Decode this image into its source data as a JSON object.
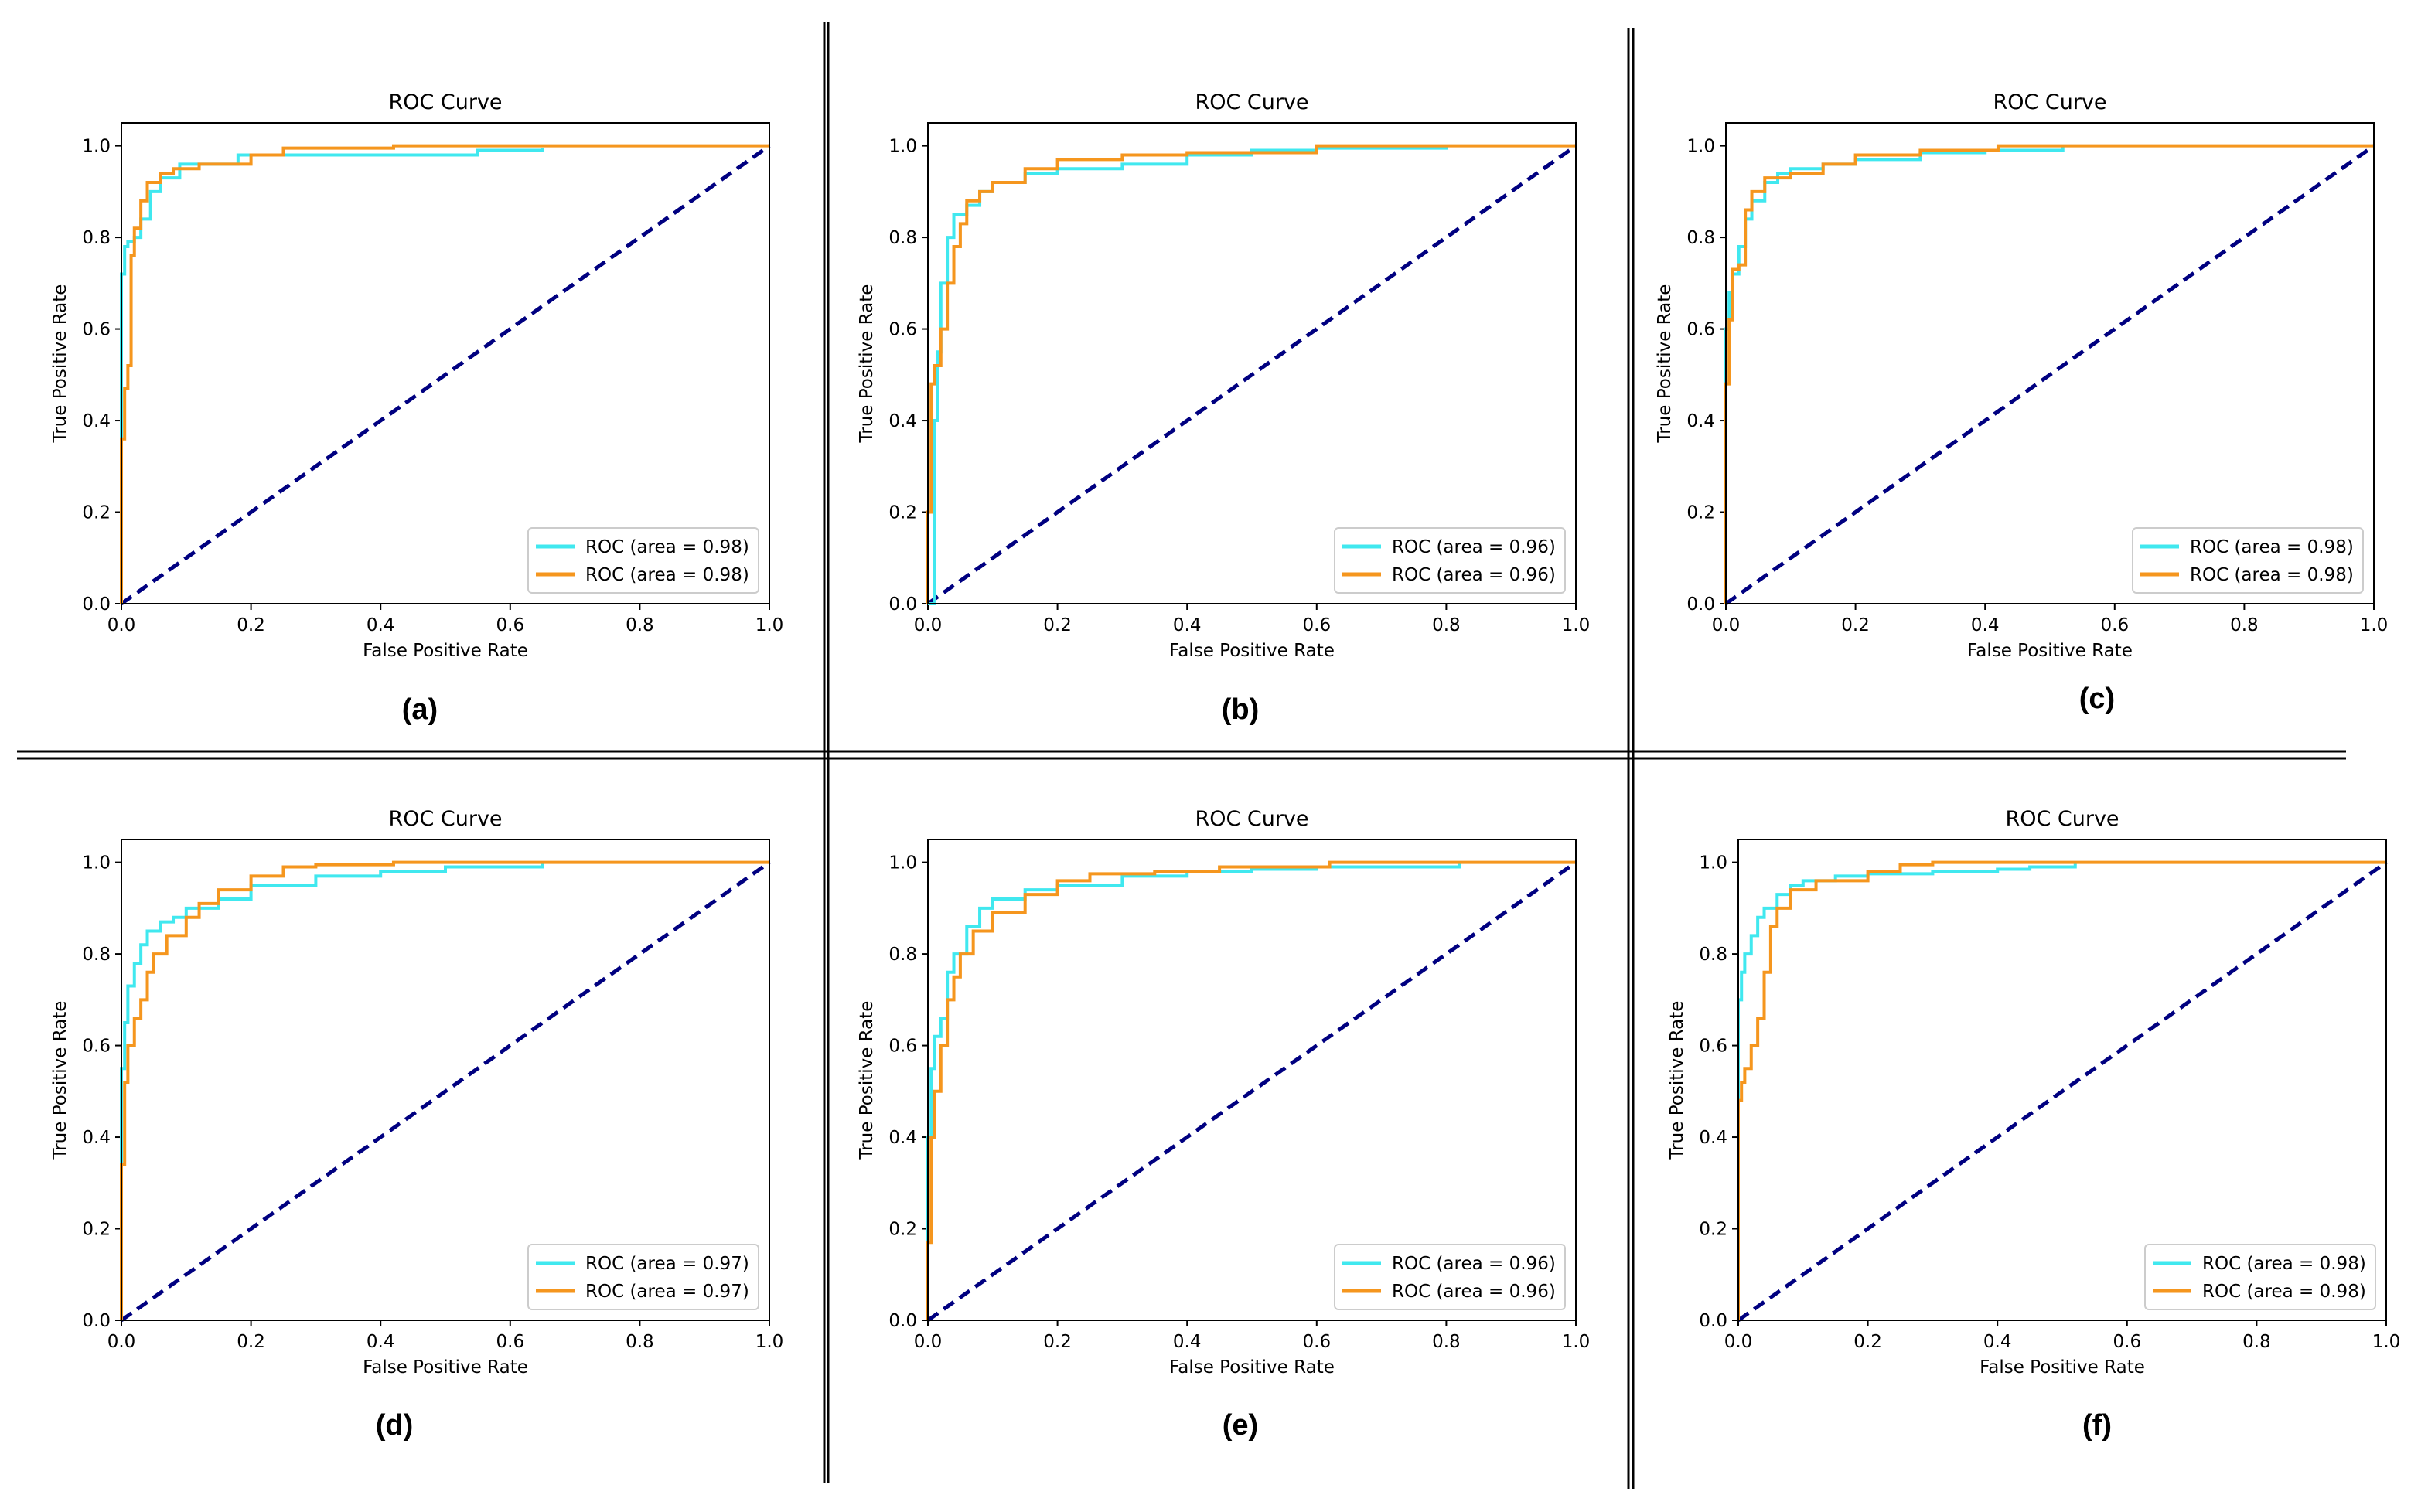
{
  "figure": {
    "separator_color": "#000000"
  },
  "style": {
    "series_colors": [
      "#40E8EF",
      "#F5961E"
    ],
    "diagonal_color": "#000080",
    "axis_color": "#000000"
  },
  "chart_data": [
    {
      "type": "line",
      "panel": "(a)",
      "title": "ROC Curve",
      "xlabel": "False Positive Rate",
      "ylabel": "True Positive Rate",
      "xlim": [
        0,
        1
      ],
      "ylim": [
        0,
        1.05
      ],
      "xticks": [
        "0.0",
        "0.2",
        "0.4",
        "0.6",
        "0.8",
        "1.0"
      ],
      "yticks": [
        "0.0",
        "0.2",
        "0.4",
        "0.6",
        "0.8",
        "1.0"
      ],
      "legend_position": "lower-right",
      "diagonal": {
        "x": [
          0,
          1
        ],
        "y": [
          0,
          1
        ],
        "style": "dashed"
      },
      "series": [
        {
          "name": "ROC (area = 0.98)",
          "x": [
            0,
            0,
            0.005,
            0.01,
            0.02,
            0.03,
            0.045,
            0.06,
            0.09,
            0.13,
            0.18,
            0.3,
            0.5,
            0.55,
            0.65
          ],
          "y": [
            0,
            0.72,
            0.78,
            0.79,
            0.8,
            0.84,
            0.9,
            0.93,
            0.96,
            0.96,
            0.98,
            0.98,
            0.98,
            0.99,
            0.995
          ]
        },
        {
          "name": "ROC (area = 0.98)",
          "x": [
            0,
            0,
            0.005,
            0.01,
            0.015,
            0.02,
            0.03,
            0.04,
            0.06,
            0.08,
            0.12,
            0.2,
            0.25,
            0.42,
            1.0
          ],
          "y": [
            0,
            0.36,
            0.47,
            0.52,
            0.76,
            0.82,
            0.88,
            0.92,
            0.94,
            0.95,
            0.96,
            0.98,
            0.995,
            1.0,
            1.0
          ]
        }
      ]
    },
    {
      "type": "line",
      "panel": "(b)",
      "title": "ROC Curve",
      "xlabel": "False Positive Rate",
      "ylabel": "True Positive Rate",
      "xlim": [
        0,
        1
      ],
      "ylim": [
        0,
        1.05
      ],
      "xticks": [
        "0.0",
        "0.2",
        "0.4",
        "0.6",
        "0.8",
        "1.0"
      ],
      "yticks": [
        "0.0",
        "0.2",
        "0.4",
        "0.6",
        "0.8",
        "1.0"
      ],
      "legend_position": "lower-right",
      "diagonal": {
        "x": [
          0,
          1
        ],
        "y": [
          0,
          1
        ],
        "style": "dashed"
      },
      "series": [
        {
          "name": "ROC (area = 0.96)",
          "x": [
            0,
            0.01,
            0.015,
            0.02,
            0.03,
            0.04,
            0.06,
            0.08,
            0.1,
            0.15,
            0.2,
            0.3,
            0.4,
            0.5,
            0.6,
            0.8
          ],
          "y": [
            0,
            0.4,
            0.55,
            0.7,
            0.8,
            0.85,
            0.87,
            0.9,
            0.92,
            0.94,
            0.95,
            0.96,
            0.98,
            0.99,
            0.995,
            1.0
          ]
        },
        {
          "name": "ROC (area = 0.96)",
          "x": [
            0,
            0,
            0.005,
            0.01,
            0.02,
            0.03,
            0.04,
            0.05,
            0.06,
            0.08,
            0.1,
            0.15,
            0.2,
            0.3,
            0.4,
            0.6,
            1.0
          ],
          "y": [
            0,
            0.2,
            0.48,
            0.52,
            0.6,
            0.7,
            0.78,
            0.83,
            0.88,
            0.9,
            0.92,
            0.95,
            0.97,
            0.98,
            0.985,
            1.0,
            1.0
          ]
        }
      ]
    },
    {
      "type": "line",
      "panel": "(c)",
      "title": "ROC Curve",
      "xlabel": "False Positive Rate",
      "ylabel": "True Positive Rate",
      "xlim": [
        0,
        1
      ],
      "ylim": [
        0,
        1.05
      ],
      "xticks": [
        "0.0",
        "0.2",
        "0.4",
        "0.6",
        "0.8",
        "1.0"
      ],
      "yticks": [
        "0.0",
        "0.2",
        "0.4",
        "0.6",
        "0.8",
        "1.0"
      ],
      "legend_position": "lower-right",
      "diagonal": {
        "x": [
          0,
          1
        ],
        "y": [
          0,
          1
        ],
        "style": "dashed"
      },
      "series": [
        {
          "name": "ROC (area = 0.98)",
          "x": [
            0,
            0,
            0.005,
            0.01,
            0.02,
            0.03,
            0.04,
            0.06,
            0.08,
            0.1,
            0.15,
            0.2,
            0.3,
            0.4,
            0.52
          ],
          "y": [
            0,
            0.6,
            0.68,
            0.72,
            0.78,
            0.84,
            0.88,
            0.92,
            0.94,
            0.95,
            0.96,
            0.97,
            0.985,
            0.99,
            1.0
          ]
        },
        {
          "name": "ROC (area = 0.98)",
          "x": [
            0,
            0,
            0.005,
            0.01,
            0.02,
            0.03,
            0.04,
            0.06,
            0.1,
            0.15,
            0.2,
            0.3,
            0.42,
            1.0
          ],
          "y": [
            0,
            0.48,
            0.62,
            0.73,
            0.74,
            0.86,
            0.9,
            0.93,
            0.94,
            0.96,
            0.98,
            0.99,
            1.0,
            1.0
          ]
        }
      ]
    },
    {
      "type": "line",
      "panel": "(d)",
      "title": "ROC Curve",
      "xlabel": "False Positive Rate",
      "ylabel": "True Positive Rate",
      "xlim": [
        0,
        1
      ],
      "ylim": [
        0,
        1.05
      ],
      "xticks": [
        "0.0",
        "0.2",
        "0.4",
        "0.6",
        "0.8",
        "1.0"
      ],
      "yticks": [
        "0.0",
        "0.2",
        "0.4",
        "0.6",
        "0.8",
        "1.0"
      ],
      "legend_position": "lower-right",
      "diagonal": {
        "x": [
          0,
          1
        ],
        "y": [
          0,
          1
        ],
        "style": "dashed"
      },
      "series": [
        {
          "name": "ROC (area = 0.97)",
          "x": [
            0,
            0,
            0.005,
            0.01,
            0.02,
            0.03,
            0.04,
            0.06,
            0.08,
            0.1,
            0.15,
            0.2,
            0.3,
            0.4,
            0.5,
            0.65
          ],
          "y": [
            0,
            0.55,
            0.65,
            0.73,
            0.78,
            0.82,
            0.85,
            0.87,
            0.88,
            0.9,
            0.92,
            0.95,
            0.97,
            0.98,
            0.99,
            1.0
          ]
        },
        {
          "name": "ROC (area = 0.97)",
          "x": [
            0,
            0,
            0.005,
            0.01,
            0.02,
            0.03,
            0.04,
            0.05,
            0.07,
            0.1,
            0.12,
            0.15,
            0.2,
            0.25,
            0.3,
            0.42,
            1.0
          ],
          "y": [
            0,
            0.34,
            0.52,
            0.6,
            0.66,
            0.7,
            0.76,
            0.8,
            0.84,
            0.88,
            0.91,
            0.94,
            0.97,
            0.99,
            0.995,
            1.0,
            1.0
          ]
        }
      ]
    },
    {
      "type": "line",
      "panel": "(e)",
      "title": "ROC Curve",
      "xlabel": "False Positive Rate",
      "ylabel": "True Positive Rate",
      "xlim": [
        0,
        1
      ],
      "ylim": [
        0,
        1.05
      ],
      "xticks": [
        "0.0",
        "0.2",
        "0.4",
        "0.6",
        "0.8",
        "1.0"
      ],
      "yticks": [
        "0.0",
        "0.2",
        "0.4",
        "0.6",
        "0.8",
        "1.0"
      ],
      "legend_position": "lower-right",
      "diagonal": {
        "x": [
          0,
          1
        ],
        "y": [
          0,
          1
        ],
        "style": "dashed"
      },
      "series": [
        {
          "name": "ROC (area = 0.96)",
          "x": [
            0,
            0,
            0.005,
            0.01,
            0.02,
            0.03,
            0.04,
            0.06,
            0.08,
            0.1,
            0.15,
            0.2,
            0.3,
            0.4,
            0.5,
            0.6,
            0.82
          ],
          "y": [
            0,
            0.4,
            0.55,
            0.62,
            0.66,
            0.76,
            0.8,
            0.86,
            0.9,
            0.92,
            0.94,
            0.95,
            0.97,
            0.98,
            0.985,
            0.99,
            1.0
          ]
        },
        {
          "name": "ROC (area = 0.96)",
          "x": [
            0,
            0,
            0.005,
            0.01,
            0.02,
            0.03,
            0.04,
            0.05,
            0.07,
            0.1,
            0.15,
            0.2,
            0.25,
            0.35,
            0.45,
            0.62,
            1.0
          ],
          "y": [
            0,
            0.17,
            0.4,
            0.5,
            0.6,
            0.7,
            0.75,
            0.8,
            0.85,
            0.89,
            0.93,
            0.96,
            0.975,
            0.98,
            0.99,
            1.0,
            1.0
          ]
        }
      ]
    },
    {
      "type": "line",
      "panel": "(f)",
      "title": "ROC Curve",
      "xlabel": "False Positive Rate",
      "ylabel": "True Positive Rate",
      "xlim": [
        0,
        1
      ],
      "ylim": [
        0,
        1.05
      ],
      "xticks": [
        "0.0",
        "0.2",
        "0.4",
        "0.6",
        "0.8",
        "1.0"
      ],
      "yticks": [
        "0.0",
        "0.2",
        "0.4",
        "0.6",
        "0.8",
        "1.0"
      ],
      "legend_position": "lower-right",
      "diagonal": {
        "x": [
          0,
          1
        ],
        "y": [
          0,
          1
        ],
        "style": "dashed"
      },
      "series": [
        {
          "name": "ROC (area = 0.98)",
          "x": [
            0,
            0,
            0.005,
            0.01,
            0.02,
            0.03,
            0.04,
            0.06,
            0.08,
            0.1,
            0.15,
            0.2,
            0.3,
            0.4,
            0.45,
            0.52
          ],
          "y": [
            0,
            0.7,
            0.76,
            0.8,
            0.84,
            0.88,
            0.9,
            0.93,
            0.95,
            0.96,
            0.97,
            0.975,
            0.98,
            0.985,
            0.99,
            1.0
          ]
        },
        {
          "name": "ROC (area = 0.98)",
          "x": [
            0,
            0,
            0.005,
            0.01,
            0.02,
            0.03,
            0.04,
            0.05,
            0.06,
            0.08,
            0.12,
            0.2,
            0.25,
            0.3,
            1.0
          ],
          "y": [
            0,
            0.48,
            0.52,
            0.55,
            0.6,
            0.66,
            0.76,
            0.86,
            0.9,
            0.94,
            0.96,
            0.98,
            0.995,
            1.0,
            1.0
          ]
        }
      ]
    }
  ]
}
